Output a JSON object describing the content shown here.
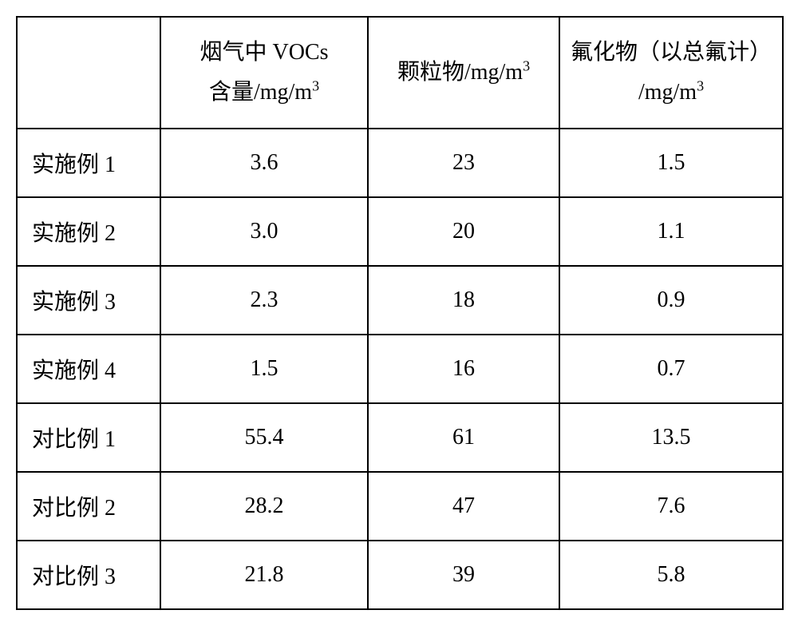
{
  "table": {
    "columns": [
      {
        "key": "label",
        "header": ""
      },
      {
        "key": "vocs",
        "header_line1": "烟气中 VOCs",
        "header_line2": "含量/mg/m",
        "unit_sup": "3"
      },
      {
        "key": "particles",
        "header": "颗粒物/mg/m",
        "unit_sup": "3"
      },
      {
        "key": "fluoride",
        "header_line1": "氟化物（以总氟计）",
        "header_line2": "/mg/m",
        "unit_sup": "3"
      }
    ],
    "rows": [
      {
        "label": "实施例 1",
        "vocs": "3.6",
        "particles": "23",
        "fluoride": "1.5"
      },
      {
        "label": "实施例 2",
        "vocs": "3.0",
        "particles": "20",
        "fluoride": "1.1"
      },
      {
        "label": "实施例 3",
        "vocs": "2.3",
        "particles": "18",
        "fluoride": "0.9"
      },
      {
        "label": "实施例 4",
        "vocs": "1.5",
        "particles": "16",
        "fluoride": "0.7"
      },
      {
        "label": "对比例 1",
        "vocs": "55.4",
        "particles": "61",
        "fluoride": "13.5"
      },
      {
        "label": "对比例 2",
        "vocs": "28.2",
        "particles": "47",
        "fluoride": "7.6"
      },
      {
        "label": "对比例 3",
        "vocs": "21.8",
        "particles": "39",
        "fluoride": "5.8"
      }
    ],
    "styling": {
      "border_color": "#000000",
      "border_width": 2,
      "background_color": "#ffffff",
      "text_color": "#000000",
      "font_size": 28,
      "header_row_height": 140,
      "data_row_height": 86,
      "col_widths": {
        "label": 180,
        "vocs": 260,
        "particles": 240,
        "fluoride": 280
      }
    }
  }
}
